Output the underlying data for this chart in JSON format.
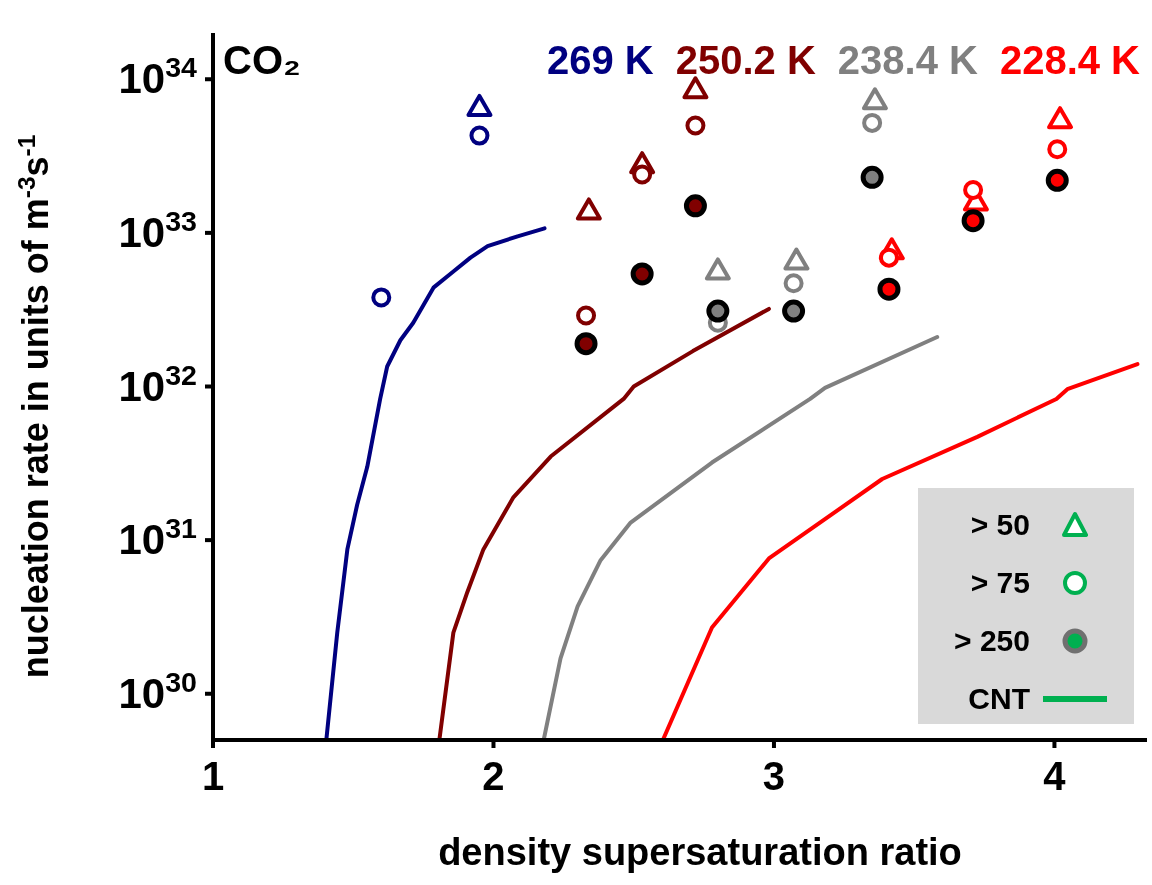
{
  "chart_data": {
    "type": "scatter",
    "title": "CO₂",
    "xlabel": "density supersaturation ratio",
    "ylabel": "nucleation rate in units of m$^{-3}$s$^{-1}$",
    "annotations": [
      "> 50",
      "> 75",
      "> 250",
      "CNT"
    ],
    "log": "y",
    "xlim": [
      1,
      4.33
    ],
    "xticks": [
      1,
      2,
      3,
      4
    ],
    "ylim": [
      5e+29,
      2e+34
    ],
    "yticks": [
      {
        "value": 1e+30,
        "label": "10$^{30}$"
      },
      {
        "value": 1e+31,
        "label": "10$^{31}$"
      },
      {
        "value": 1e+32,
        "label": "10$^{32}$"
      },
      {
        "value": 1e+33,
        "label": "10$^{33}$"
      },
      {
        "value": 1e+34,
        "label": "10$^{34}$"
      }
    ],
    "grid": false,
    "series": [
      {
        "marker": "triangle",
        "color": "#000080",
        "x": [
          1.95
        ],
        "values": [
          6.6e+33
        ]
      },
      {
        "marker": "circle",
        "color": "#000080",
        "x": [
          1.6,
          1.95
        ],
        "values": [
          3.8e+32,
          4.3e+33
        ]
      },
      {
        "marker": "triangle",
        "color": "#800000",
        "x": [
          2.34,
          2.53,
          2.72
        ],
        "values": [
          1.4e+33,
          2.8e+33,
          8.6e+33
        ]
      },
      {
        "marker": "circle",
        "color": "#800000",
        "x": [
          2.33,
          2.53,
          2.72
        ],
        "values": [
          2.9e+32,
          2.4e+33,
          5e+33
        ]
      },
      {
        "marker": "circle-filled",
        "color": "#800000",
        "x": [
          2.33,
          2.53,
          2.72
        ],
        "values": [
          1.9e+32,
          5.4e+32,
          1.5e+33
        ]
      },
      {
        "marker": "triangle",
        "color": "#808080",
        "x": [
          2.8,
          3.08,
          3.36
        ],
        "values": [
          5.7e+32,
          6.6e+32,
          7.3e+33
        ]
      },
      {
        "marker": "circle",
        "color": "#808080",
        "x": [
          2.8,
          3.07,
          3.35
        ],
        "values": [
          2.6e+32,
          4.7e+32,
          5.2e+33
        ]
      },
      {
        "marker": "circle-filled",
        "color": "#808080",
        "x": [
          2.8,
          3.07,
          3.35
        ],
        "values": [
          3.1e+32,
          3.1e+32,
          2.3e+33
        ]
      },
      {
        "marker": "triangle",
        "color": "#ff0000",
        "x": [
          3.42,
          3.72,
          4.02
        ],
        "values": [
          7.7e+32,
          1.6e+33,
          5.5e+33
        ]
      },
      {
        "marker": "circle",
        "color": "#ff0000",
        "x": [
          3.41,
          3.71,
          4.01
        ],
        "values": [
          6.9e+32,
          1.9e+33,
          3.5e+33
        ]
      },
      {
        "marker": "circle-filled",
        "color": "#ff0000",
        "x": [
          3.41,
          3.71,
          4.01
        ],
        "values": [
          4.3e+32,
          1.2e+33,
          2.2e+33
        ]
      },
      {
        "name": "269 K",
        "type": "line",
        "color": "#000080",
        "x": [
          1.404,
          1.443,
          1.479,
          1.514,
          1.55,
          1.596,
          1.621,
          1.668,
          1.714,
          1.786,
          1.857,
          1.918,
          1.979,
          2.086,
          2.182
        ],
        "values": [
          5e+29,
          2.5e+30,
          8.7e+30,
          1.7e+31,
          3e+31,
          8.3e+31,
          1.35e+32,
          2e+32,
          2.6e+32,
          4.4e+32,
          5.6e+32,
          6.9e+32,
          8.2e+32,
          9.5e+32,
          1.07e+33
        ]
      },
      {
        "name": "250.2 K",
        "type": "line",
        "color": "#800000",
        "x": [
          1.807,
          1.857,
          1.907,
          1.964,
          2.071,
          2.204,
          2.464,
          2.5,
          2.711,
          2.982
        ],
        "values": [
          5e+29,
          2.5e+30,
          4.6e+30,
          8.7e+30,
          1.9e+31,
          3.5e+31,
          8.3e+31,
          1e+32,
          1.7e+32,
          3.2e+32
        ]
      },
      {
        "name": "238.4 K",
        "type": "line",
        "color": "#808080",
        "x": [
          2.179,
          2.239,
          2.3,
          2.382,
          2.489,
          2.779,
          3.129,
          3.182,
          3.582
        ],
        "values": [
          5e+29,
          1.7e+30,
          3.7e+30,
          7.4e+30,
          1.3e+31,
          3.2e+31,
          8.3e+31,
          9.8e+31,
          2.1e+32
        ]
      },
      {
        "name": "228.4 K",
        "type": "line",
        "color": "#ff0000",
        "x": [
          2.604,
          2.779,
          2.982,
          3.386,
          3.725,
          4.007,
          4.046,
          4.296
        ],
        "values": [
          5e+29,
          2.7e+30,
          7.6e+30,
          2.5e+31,
          4.7e+31,
          8.3e+31,
          9.6e+31,
          1.4e+32
        ]
      }
    ]
  }
}
